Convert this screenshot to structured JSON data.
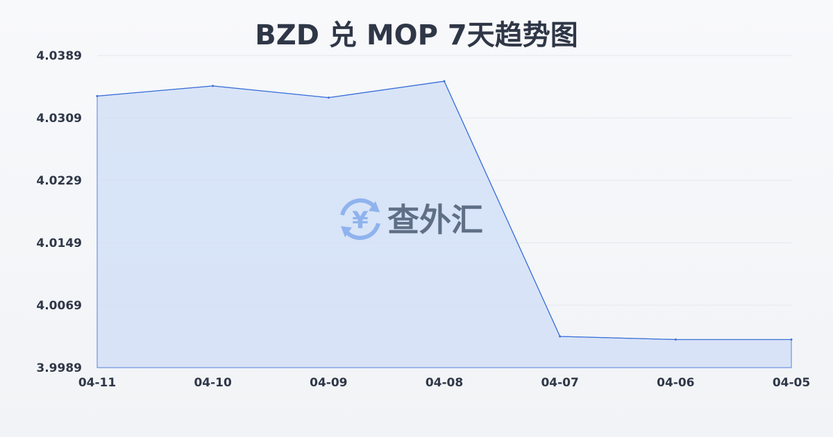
{
  "chart_data": {
    "type": "area",
    "title": "BZD 兑 MOP 7天趋势图",
    "categories": [
      "04-11",
      "04-10",
      "04-09",
      "04-08",
      "04-07",
      "04-06",
      "04-05"
    ],
    "values": [
      4.0337,
      4.035,
      4.0335,
      4.0356,
      4.0029,
      4.0025,
      4.0025
    ],
    "yticks": [
      "4.0389",
      "4.0309",
      "4.0229",
      "4.0149",
      "4.0069",
      "3.9989"
    ],
    "ylim": [
      3.9989,
      4.0389
    ],
    "grid": true,
    "colors": {
      "line": "#3a6fd8",
      "fill": "#d4e1f7",
      "grid": "#e3e6ec"
    }
  },
  "watermark": {
    "text": "查外汇",
    "icon": "yen-exchange-icon"
  }
}
